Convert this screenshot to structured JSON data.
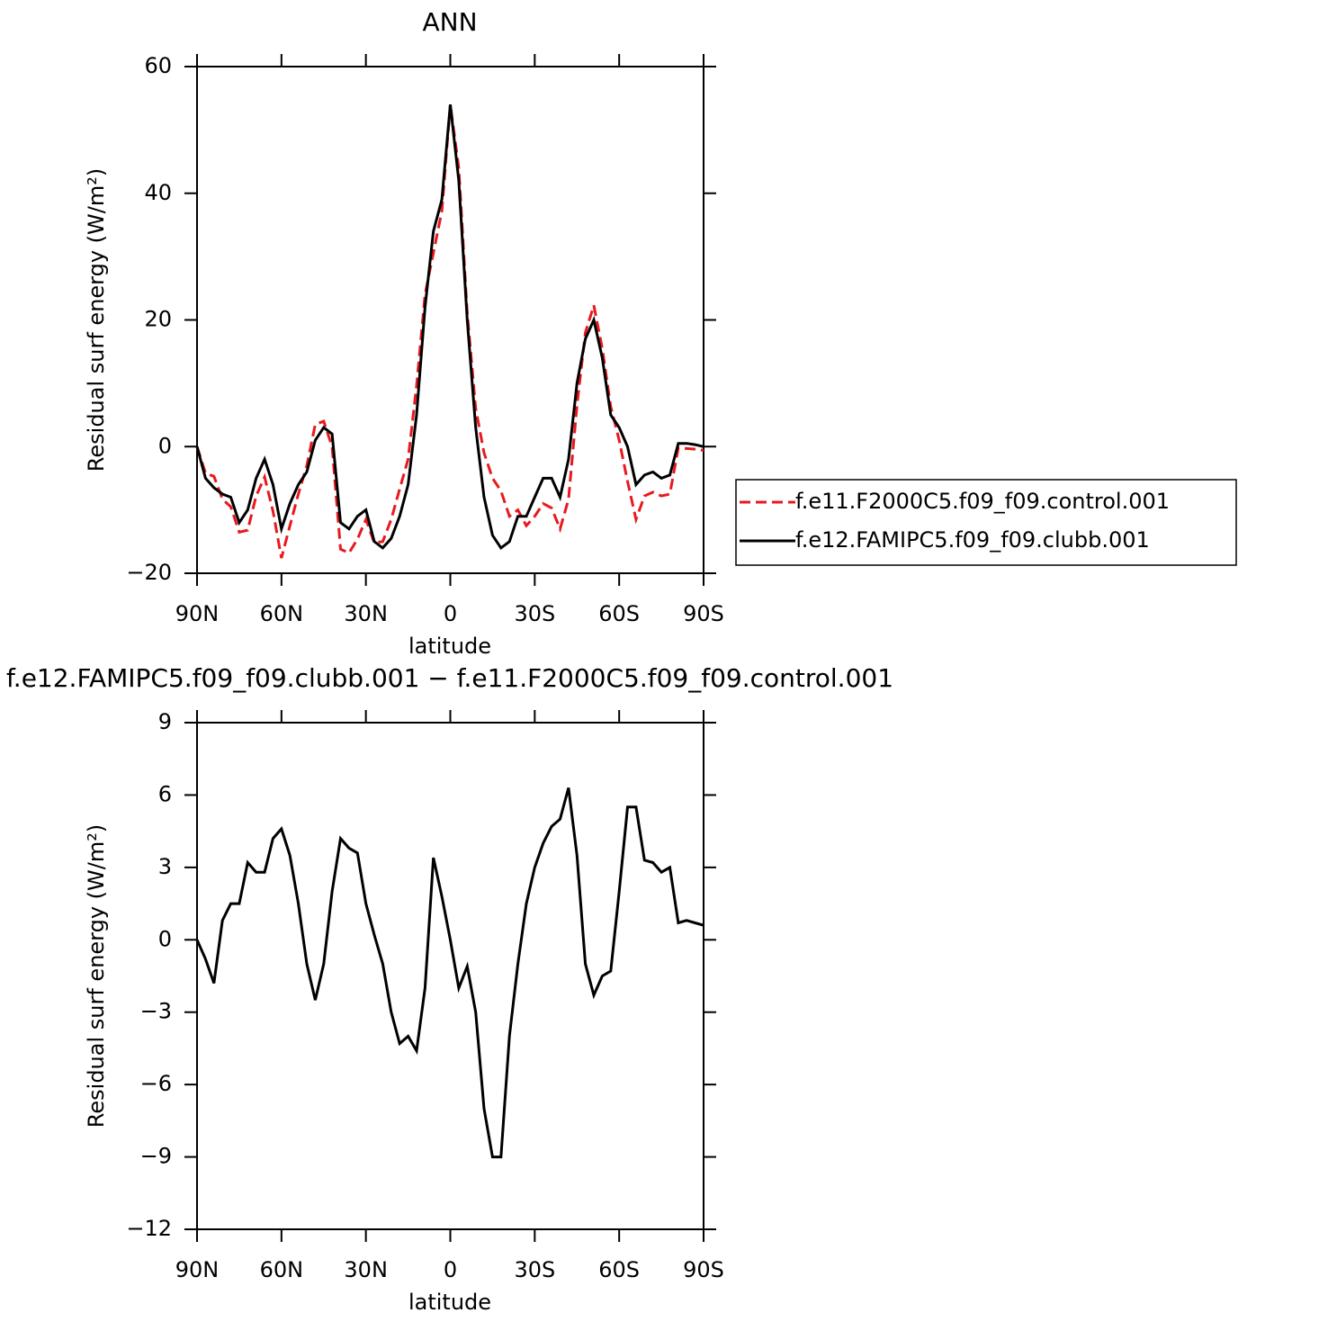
{
  "chart_data": [
    {
      "type": "line",
      "title": "ANN",
      "x_label": "latitude",
      "y_label": "Residual surf energy (W/m²)",
      "x": [
        90,
        87,
        84,
        81,
        78,
        75,
        72,
        69,
        66,
        63,
        60,
        57,
        54,
        51,
        48,
        45,
        42,
        39,
        36,
        33,
        30,
        27,
        24,
        21,
        18,
        15,
        12,
        9,
        6,
        3,
        0,
        -3,
        -6,
        -9,
        -12,
        -15,
        -18,
        -21,
        -24,
        -27,
        -30,
        -33,
        -36,
        -39,
        -42,
        -45,
        -48,
        -51,
        -54,
        -57,
        -60,
        -63,
        -66,
        -69,
        -72,
        -75,
        -78,
        -81,
        -84,
        -87,
        -90
      ],
      "series": [
        {
          "name": "f.e11.F2000C5.f09_f09.control.001",
          "color": "#e8191e",
          "linestyle": "dashed",
          "values": [
            0,
            -4.2,
            -4.7,
            -8.3,
            -9.5,
            -13.5,
            -13.2,
            -7.8,
            -4.8,
            -10.2,
            -17.6,
            -12.5,
            -7.5,
            -3,
            3.5,
            4,
            0,
            -16.2,
            -16.8,
            -14.6,
            -11.5,
            -15.2,
            -15,
            -11.5,
            -6.7,
            -2,
            9.6,
            24,
            30.6,
            37.2,
            54,
            44,
            21.1,
            6,
            -1,
            -5,
            -7,
            -11,
            -10,
            -12.5,
            -11,
            -9,
            -9.7,
            -13,
            -8.3,
            6.5,
            18,
            22.3,
            15.5,
            6.3,
            1,
            -5.5,
            -11.5,
            -7.8,
            -7.2,
            -7.8,
            -7.5,
            -0.2,
            -0.3,
            -0.4,
            -0.6
          ]
        },
        {
          "name": "f.e12.FAMIPC5.f09_f09.clubb.001",
          "color": "#000000",
          "linestyle": "solid",
          "values": [
            0,
            -5,
            -6.5,
            -7.5,
            -8,
            -12,
            -10,
            -5,
            -2,
            -6,
            -13,
            -9,
            -6,
            -4,
            1,
            3,
            2,
            -12,
            -13,
            -11,
            -10,
            -15,
            -16,
            -14.5,
            -11,
            -6,
            5,
            22,
            34,
            39,
            54,
            42,
            20,
            3,
            -8,
            -14,
            -16,
            -15,
            -11,
            -11,
            -8,
            -5,
            -5,
            -8,
            -2,
            10,
            17,
            20,
            14,
            5,
            3,
            0,
            -6,
            -4.5,
            -4,
            -5,
            -4.5,
            0.5,
            0.5,
            0.3,
            0
          ]
        }
      ],
      "xlim": [
        90,
        -90
      ],
      "xticks": [
        {
          "value": 90,
          "label": "90N"
        },
        {
          "value": 60,
          "label": "60N"
        },
        {
          "value": 30,
          "label": "30N"
        },
        0,
        {
          "value": -30,
          "label": "30S"
        },
        {
          "value": -60,
          "label": "60S"
        },
        {
          "value": -90,
          "label": "90S"
        }
      ],
      "ylim": [
        -20,
        60
      ],
      "yticks": [
        {
          "value": -20,
          "label": "−20"
        },
        0,
        20,
        40,
        60
      ],
      "legend": "right"
    },
    {
      "type": "line",
      "title": "f.e12.FAMIPC5.f09_f09.clubb.001 − f.e11.F2000C5.f09_f09.control.001",
      "x_label": "latitude",
      "y_label": "Residual surf energy (W/m²)",
      "x": [
        90,
        87,
        84,
        81,
        78,
        75,
        72,
        69,
        66,
        63,
        60,
        57,
        54,
        51,
        48,
        45,
        42,
        39,
        36,
        33,
        30,
        27,
        24,
        21,
        18,
        15,
        12,
        9,
        6,
        3,
        0,
        -3,
        -6,
        -9,
        -12,
        -15,
        -18,
        -21,
        -24,
        -27,
        -30,
        -33,
        -36,
        -39,
        -42,
        -45,
        -48,
        -51,
        -54,
        -57,
        -60,
        -63,
        -66,
        -69,
        -72,
        -75,
        -78,
        -81,
        -84,
        -87,
        -90
      ],
      "color": "#000000",
      "values": [
        0,
        -0.8,
        -1.8,
        0.8,
        1.5,
        1.5,
        3.2,
        2.8,
        2.8,
        4.2,
        4.6,
        3.5,
        1.5,
        -1,
        -2.5,
        -1,
        2,
        4.2,
        3.8,
        3.6,
        1.5,
        0.2,
        -1,
        -3,
        -4.3,
        -4,
        -4.6,
        -2,
        3.4,
        1.8,
        0,
        -2,
        -1.1,
        -3,
        -7,
        -9,
        -9,
        -4,
        -1,
        1.5,
        3,
        4,
        4.7,
        5,
        6.3,
        3.5,
        -1,
        -2.3,
        -1.5,
        -1.3,
        2,
        5.5,
        5.5,
        3.3,
        3.2,
        2.8,
        3,
        0.7,
        0.8,
        0.7,
        0.6
      ],
      "xlim": [
        90,
        -90
      ],
      "xticks": [
        {
          "value": 90,
          "label": "90N"
        },
        {
          "value": 60,
          "label": "60N"
        },
        {
          "value": 30,
          "label": "30N"
        },
        0,
        {
          "value": -30,
          "label": "30S"
        },
        {
          "value": -60,
          "label": "60S"
        },
        {
          "value": -90,
          "label": "90S"
        }
      ],
      "ylim": [
        -12,
        9
      ],
      "yticks": [
        {
          "value": -12,
          "label": "−12"
        },
        {
          "value": -9,
          "label": "−9"
        },
        {
          "value": -6,
          "label": "−6"
        },
        {
          "value": -3,
          "label": "−3"
        },
        0,
        3,
        6,
        9
      ]
    }
  ]
}
